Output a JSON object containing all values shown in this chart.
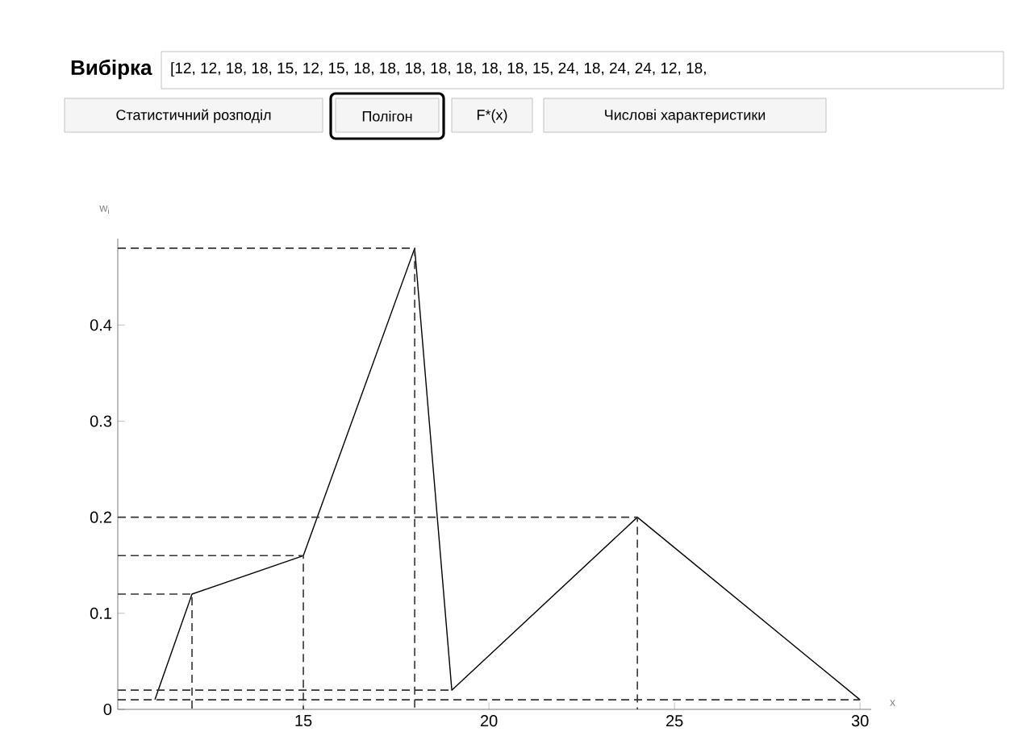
{
  "chart_data": {
    "type": "line",
    "title": "Вибірка",
    "subtitle": "[12, 12, 18, 18, 15, 12, 15, 18, 18, 18, 18, 18, 18, 18, 15, 24, 18, 24, 24, 12, 18,",
    "annotations": [
      "Статистичний розподіл",
      "Полігон",
      "F*(x)",
      "Числові характеристики"
    ],
    "xlabel": "x",
    "ylabel": "w$_{i}$",
    "x": [
      11,
      12,
      15,
      18,
      19,
      24,
      30
    ],
    "series": [
      {
        "color": "#000000",
        "values": [
          0.01,
          0.12,
          0.16,
          0.48,
          0.02,
          0.2,
          0.01
        ]
      },
      {
        "color": "#333333",
        "line_style": "dashed",
        "x": [
          10,
          12,
          12
        ],
        "values": [
          0.12,
          0.12,
          0
        ]
      },
      {
        "color": "#333333",
        "line_style": "dashed",
        "x": [
          10,
          15,
          15
        ],
        "values": [
          0.16,
          0.16,
          0
        ]
      },
      {
        "color": "#333333",
        "line_style": "dashed",
        "x": [
          10,
          18,
          18
        ],
        "values": [
          0.48,
          0.48,
          0
        ]
      },
      {
        "color": "#333333",
        "line_style": "dashed",
        "x": [
          10,
          19
        ],
        "values": [
          0.02,
          0.02
        ]
      },
      {
        "color": "#333333",
        "line_style": "dashed",
        "x": [
          10,
          24,
          24
        ],
        "values": [
          0.2,
          0.2,
          0
        ]
      },
      {
        "color": "#333333",
        "line_style": "dashed",
        "x": [
          10,
          30
        ],
        "values": [
          0.01,
          0.01
        ]
      }
    ],
    "xlim": [
      10,
      30.3
    ],
    "ylim": [
      0,
      0.49
    ],
    "xticks": [
      15,
      20,
      25,
      30
    ],
    "yticks": [
      0,
      0.1,
      0.2,
      0.3,
      0.4
    ],
    "marker": "none",
    "line_style": "solid",
    "grid": false
  }
}
